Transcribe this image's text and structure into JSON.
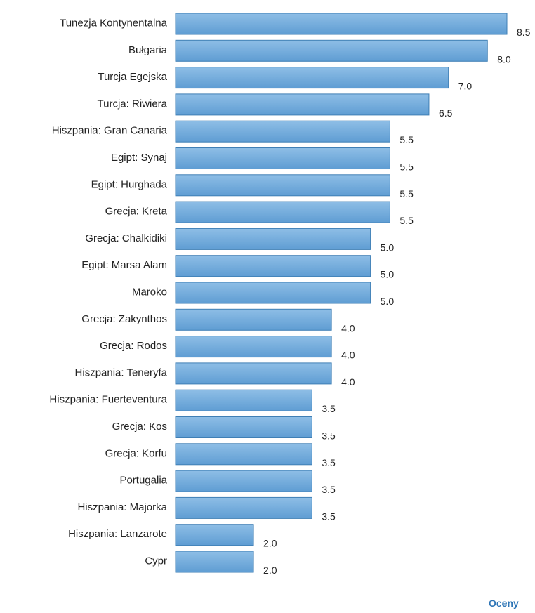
{
  "chart_data": {
    "type": "bar",
    "orientation": "horizontal",
    "categories": [
      "Tunezja Kontynentalna",
      "Bułgaria",
      "Turcja Egejska",
      "Turcja: Riwiera",
      "Hiszpania: Gran Canaria",
      "Egipt: Synaj",
      "Egipt: Hurghada",
      "Grecja: Kreta",
      "Grecja: Chalkidiki",
      "Egipt: Marsa Alam",
      "Maroko",
      "Grecja: Zakynthos",
      "Grecja: Rodos",
      "Hiszpania: Teneryfa",
      "Hiszpania: Fuerteventura",
      "Grecja: Kos",
      "Grecja: Korfu",
      "Portugalia",
      "Hiszpania: Majorka",
      "Hiszpania: Lanzarote",
      "Cypr"
    ],
    "values": [
      8.5,
      8.0,
      7.0,
      6.5,
      5.5,
      5.5,
      5.5,
      5.5,
      5.0,
      5.0,
      5.0,
      4.0,
      4.0,
      4.0,
      3.5,
      3.5,
      3.5,
      3.5,
      3.5,
      2.0,
      2.0
    ],
    "value_labels": [
      "8.5",
      "8.0",
      "7.0",
      "6.5",
      "5.5",
      "5.5",
      "5.5",
      "5.5",
      "5.0",
      "5.0",
      "5.0",
      "4.0",
      "4.0",
      "4.0",
      "3.5",
      "3.5",
      "3.5",
      "3.5",
      "3.5",
      "2.0",
      "2.0"
    ],
    "xlim": [
      0,
      8.5
    ],
    "grid": false,
    "legend": "none",
    "bar_color": "#6fa8dc",
    "bar_stroke": "#3f7fb5",
    "caption": "Oceny"
  }
}
